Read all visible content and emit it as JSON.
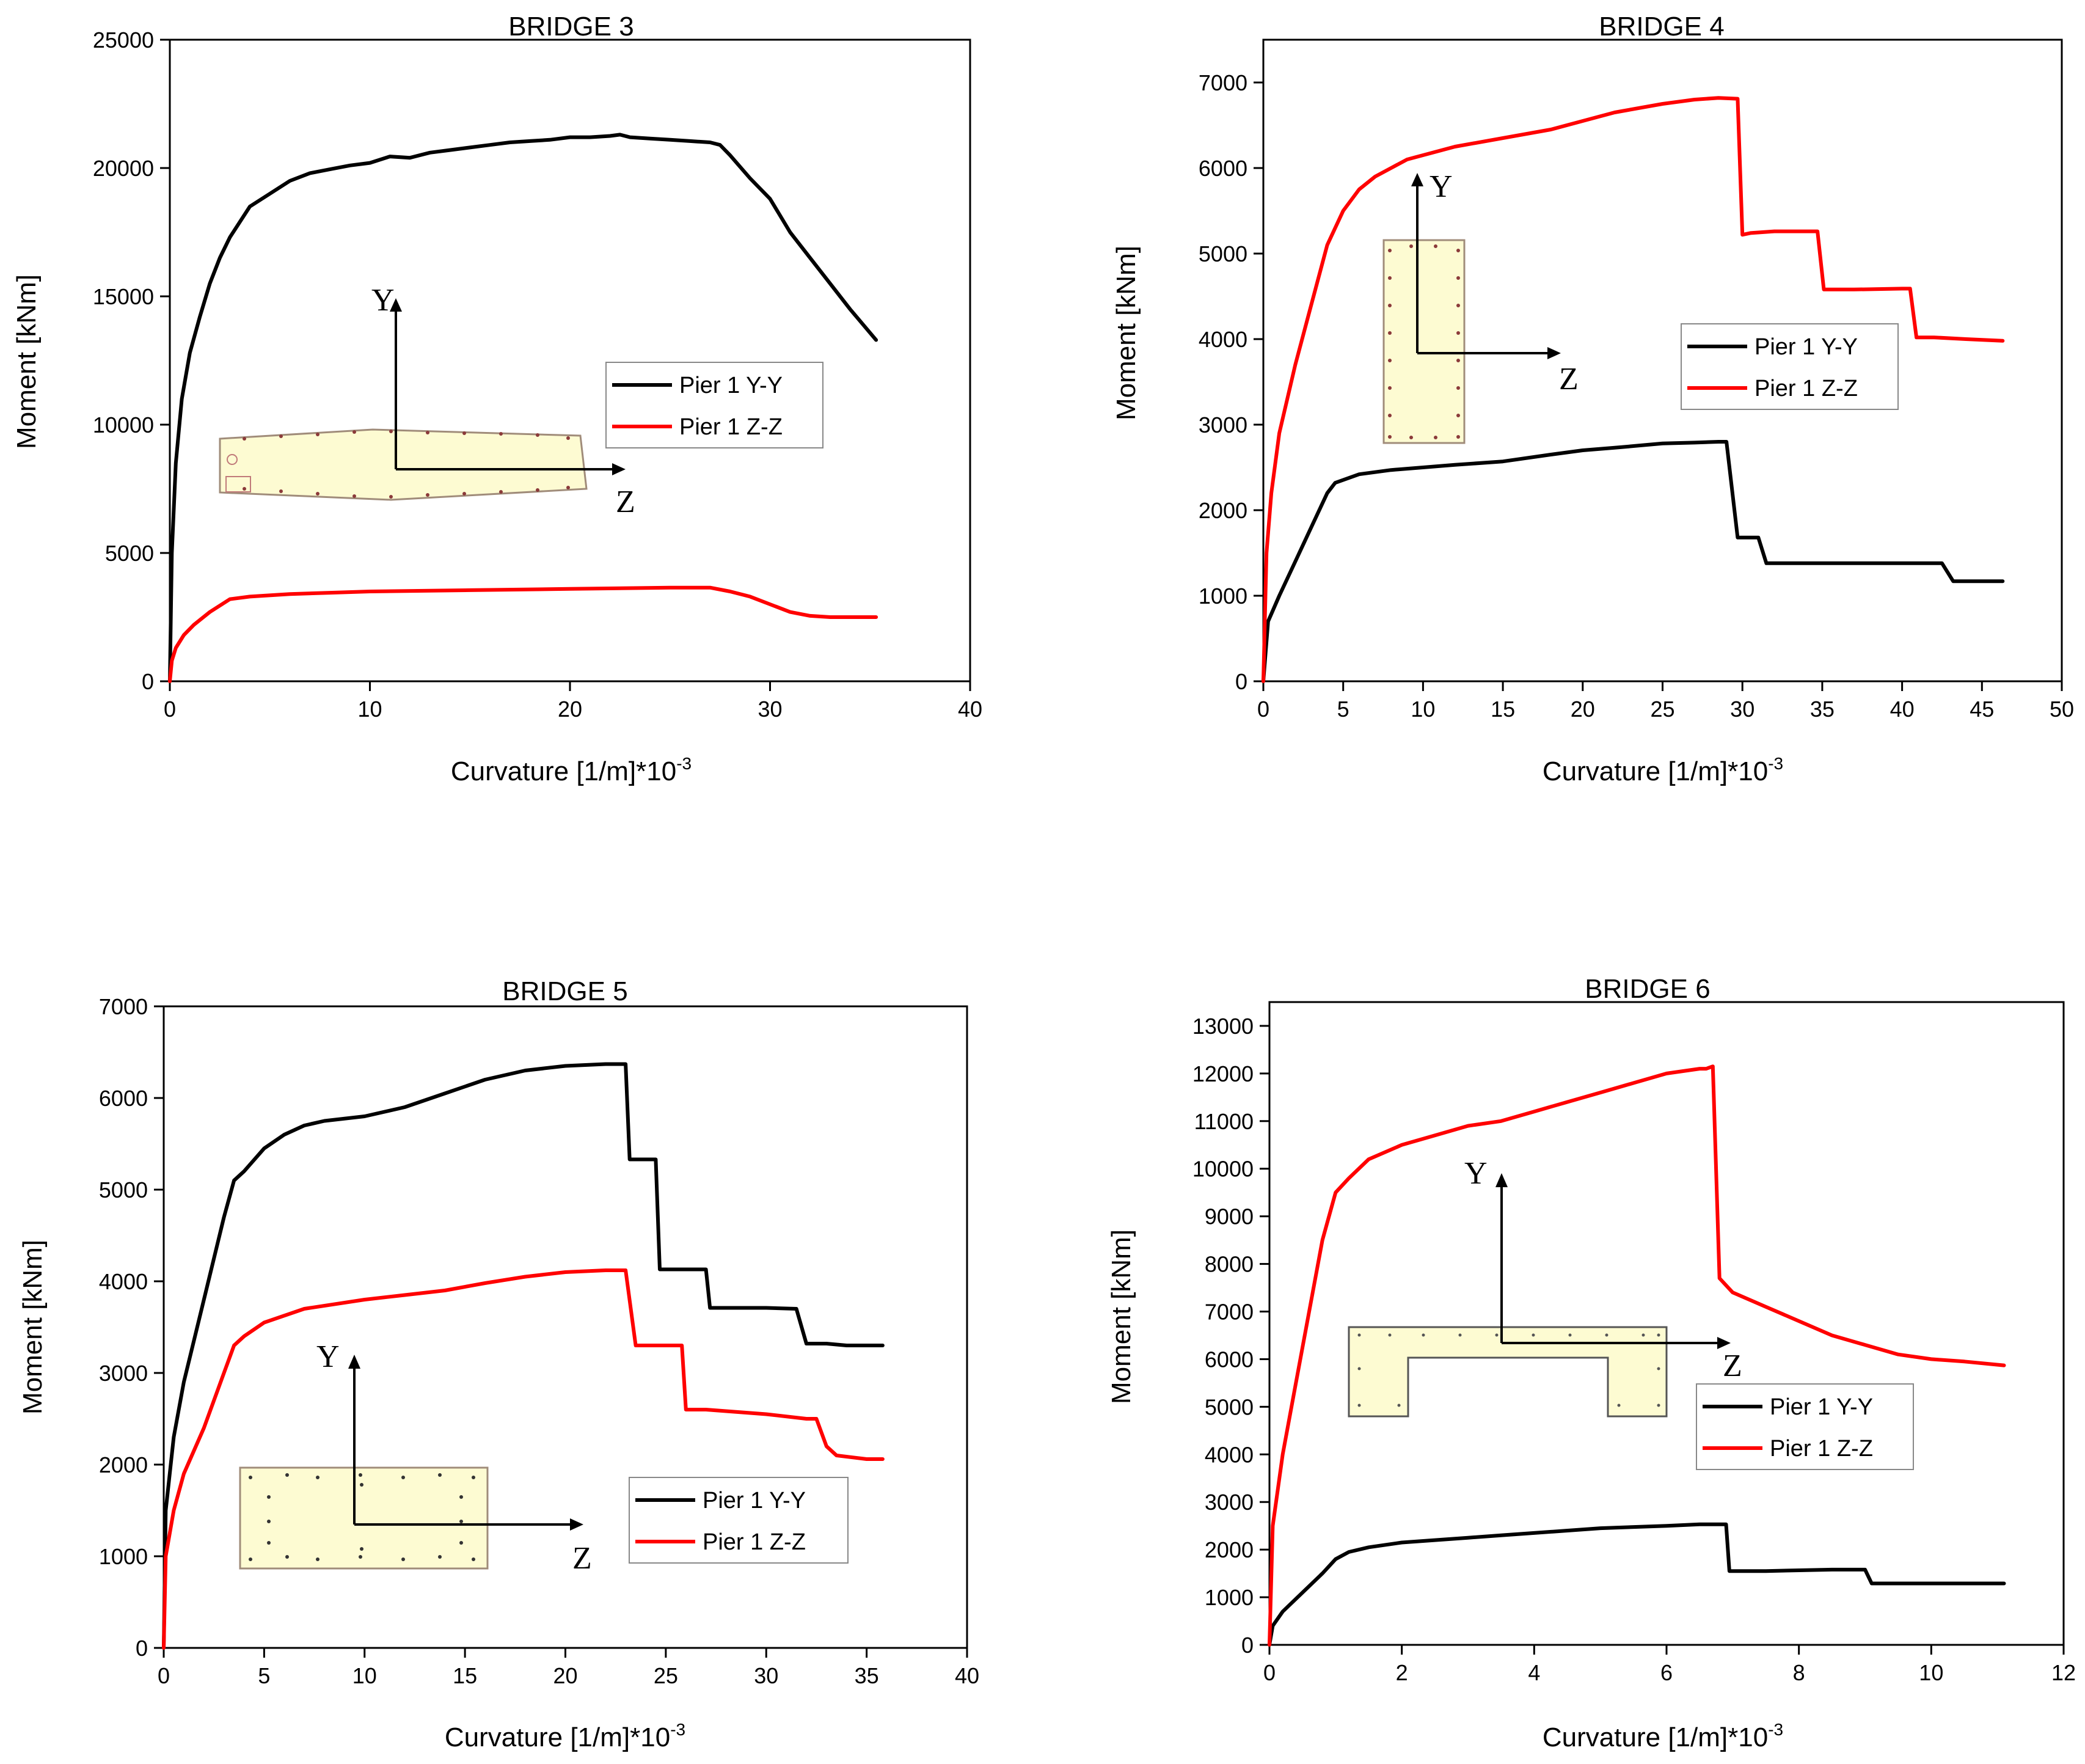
{
  "colors": {
    "axis": "#000000",
    "yy": "#000000",
    "zz": "#ff0000",
    "section_fill": "#fdfbd2",
    "section_stroke": "#a08c7a",
    "rebar": "#8b3a3a"
  },
  "legend_labels": {
    "yy": "Pier 1 Y-Y",
    "zz": "Pier 1 Z-Z"
  },
  "axis_labels": {
    "y": "Y",
    "z": "Z"
  },
  "chart_data": [
    {
      "id": "bridge3",
      "type": "line",
      "title": "BRIDGE 3",
      "xlabel": "Curvature [1/m]*10",
      "xlabel_sup": "-3",
      "ylabel": "Moment [kNm]",
      "xlim": [
        0,
        40
      ],
      "ylim": [
        0,
        25000
      ],
      "xticks": [
        0,
        10,
        20,
        30,
        40
      ],
      "yticks": [
        0,
        5000,
        10000,
        15000,
        20000,
        25000
      ],
      "legend": "right-middle",
      "series": [
        {
          "name": "Pier 1 Y-Y",
          "x": [
            0,
            0.1,
            0.3,
            0.6,
            1,
            1.5,
            2,
            2.5,
            3,
            4,
            5,
            6,
            7,
            8,
            9,
            10,
            11,
            12,
            13,
            14,
            15,
            16,
            17,
            18,
            19,
            20,
            21,
            22,
            22.5,
            23,
            24,
            25,
            26,
            27,
            27.5,
            28,
            29,
            30,
            31,
            32,
            33,
            34,
            35.3
          ],
          "y": [
            0,
            5000,
            8500,
            11000,
            12800,
            14200,
            15500,
            16500,
            17300,
            18500,
            19000,
            19500,
            19800,
            19950,
            20100,
            20200,
            20450,
            20400,
            20600,
            20700,
            20800,
            20900,
            21000,
            21050,
            21100,
            21200,
            21200,
            21250,
            21300,
            21200,
            21150,
            21100,
            21050,
            21000,
            20900,
            20500,
            19600,
            18800,
            17500,
            16500,
            15500,
            14500,
            13300
          ]
        },
        {
          "name": "Pier 1 Z-Z",
          "x": [
            0,
            0.1,
            0.3,
            0.7,
            1.2,
            2,
            3,
            4,
            6,
            8,
            10,
            15,
            20,
            25,
            27,
            28,
            29,
            30,
            31,
            32,
            33,
            35.3
          ],
          "y": [
            0,
            800,
            1300,
            1800,
            2200,
            2700,
            3200,
            3300,
            3400,
            3450,
            3500,
            3550,
            3600,
            3650,
            3650,
            3500,
            3300,
            3000,
            2700,
            2550,
            2500,
            2500
          ]
        }
      ]
    },
    {
      "id": "bridge4",
      "type": "line",
      "title": "BRIDGE 4",
      "xlabel": "Curvature [1/m]*10",
      "xlabel_sup": "-3",
      "ylabel": "Moment [kNm]",
      "xlim": [
        0,
        50
      ],
      "ylim": [
        0,
        7500
      ],
      "xticks": [
        0,
        5,
        10,
        15,
        20,
        25,
        30,
        35,
        40,
        45,
        50
      ],
      "yticks": [
        0,
        1000,
        2000,
        3000,
        4000,
        5000,
        6000,
        7000
      ],
      "legend": "right-middle",
      "series": [
        {
          "name": "Pier 1 Y-Y",
          "x": [
            0,
            0.3,
            1,
            2,
            3,
            4,
            4.5,
            6,
            8,
            10,
            12,
            15,
            18,
            20,
            22,
            25,
            27,
            28.5,
            29,
            29.7,
            30.5,
            31,
            31.5,
            35,
            40,
            42.5,
            43.2,
            44,
            46.3
          ],
          "y": [
            0,
            700,
            1000,
            1400,
            1800,
            2200,
            2320,
            2420,
            2470,
            2500,
            2530,
            2570,
            2650,
            2700,
            2730,
            2780,
            2790,
            2800,
            2800,
            1680,
            1680,
            1680,
            1380,
            1380,
            1380,
            1380,
            1170,
            1170,
            1170
          ]
        },
        {
          "name": "Pier 1 Z-Z",
          "x": [
            0,
            0.2,
            0.5,
            1,
            2,
            3,
            4,
            5,
            6,
            7,
            8,
            9,
            10,
            12,
            15,
            18,
            20,
            22,
            25,
            27,
            28.5,
            29.7,
            30,
            30.5,
            32,
            34,
            34.7,
            35.1,
            37,
            40,
            40.5,
            40.9,
            42,
            44,
            46.3
          ],
          "y": [
            0,
            1500,
            2200,
            2900,
            3700,
            4400,
            5100,
            5500,
            5750,
            5900,
            6000,
            6100,
            6150,
            6250,
            6350,
            6450,
            6550,
            6650,
            6750,
            6800,
            6820,
            6810,
            5220,
            5240,
            5260,
            5260,
            5260,
            4580,
            4580,
            4590,
            4590,
            4020,
            4020,
            4000,
            3980
          ]
        }
      ]
    },
    {
      "id": "bridge5",
      "type": "line",
      "title": "BRIDGE 5",
      "xlabel": "Curvature [1/m]*10",
      "xlabel_sup": "-3",
      "ylabel": "Moment [kNm]",
      "xlim": [
        0,
        40
      ],
      "ylim": [
        0,
        7000
      ],
      "xticks": [
        0,
        5,
        10,
        15,
        20,
        25,
        30,
        35,
        40
      ],
      "yticks": [
        0,
        1000,
        2000,
        3000,
        4000,
        5000,
        6000,
        7000
      ],
      "legend": "right-bottom",
      "series": [
        {
          "name": "Pier 1 Y-Y",
          "x": [
            0,
            0.1,
            0.5,
            1,
            2,
            3,
            3.5,
            4,
            5,
            6,
            7,
            8,
            10,
            12,
            14,
            16,
            18,
            20,
            22,
            23,
            23.2,
            24,
            24.5,
            24.7,
            25,
            26,
            27,
            27.2,
            28,
            30,
            31.5,
            32,
            33,
            34,
            35.8
          ],
          "y": [
            0,
            1500,
            2300,
            2900,
            3800,
            4700,
            5100,
            5200,
            5450,
            5600,
            5700,
            5750,
            5800,
            5900,
            6050,
            6200,
            6300,
            6350,
            6370,
            6370,
            5330,
            5330,
            5330,
            4130,
            4130,
            4130,
            4130,
            3710,
            3710,
            3710,
            3700,
            3320,
            3320,
            3300,
            3300
          ]
        },
        {
          "name": "Pier 1 Z-Z",
          "x": [
            0,
            0.1,
            0.5,
            1,
            2,
            3,
            3.5,
            4,
            5,
            7,
            10,
            12,
            14,
            16,
            18,
            20,
            22,
            23,
            23.5,
            24,
            25,
            25.8,
            26,
            27,
            30,
            32,
            32.5,
            33,
            33.5,
            35,
            35.8
          ],
          "y": [
            0,
            1000,
            1500,
            1900,
            2400,
            3000,
            3300,
            3400,
            3550,
            3700,
            3800,
            3850,
            3900,
            3980,
            4050,
            4100,
            4120,
            4120,
            3300,
            3300,
            3300,
            3300,
            2600,
            2600,
            2550,
            2500,
            2500,
            2200,
            2100,
            2060,
            2060
          ]
        }
      ]
    },
    {
      "id": "bridge6",
      "type": "line",
      "title": "BRIDGE 6",
      "xlabel": "Curvature [1/m]*10",
      "xlabel_sup": "-3",
      "ylabel": "Moment [kNm]",
      "xlim": [
        0,
        12
      ],
      "ylim": [
        0,
        13500
      ],
      "xticks": [
        0,
        2,
        4,
        6,
        8,
        10,
        12
      ],
      "yticks": [
        0,
        1000,
        2000,
        3000,
        4000,
        5000,
        6000,
        7000,
        8000,
        9000,
        10000,
        11000,
        12000,
        13000
      ],
      "legend": "right-bottom",
      "series": [
        {
          "name": "Pier 1 Y-Y",
          "x": [
            0,
            0.05,
            0.2,
            0.5,
            0.8,
            1,
            1.2,
            1.5,
            2,
            2.5,
            3,
            3.5,
            4,
            5,
            6,
            6.5,
            6.9,
            6.95,
            7.5,
            8.5,
            9,
            9.1,
            9.5,
            10,
            11.1
          ],
          "y": [
            0,
            400,
            700,
            1100,
            1500,
            1800,
            1950,
            2050,
            2150,
            2200,
            2250,
            2300,
            2350,
            2450,
            2500,
            2530,
            2530,
            1550,
            1550,
            1580,
            1580,
            1290,
            1290,
            1290,
            1290
          ]
        },
        {
          "name": "Pier 1 Z-Z",
          "x": [
            0,
            0.05,
            0.2,
            0.4,
            0.6,
            0.8,
            1,
            1.2,
            1.5,
            2,
            2.5,
            3,
            3.5,
            4,
            4.5,
            5,
            5.5,
            6,
            6.5,
            6.6,
            6.7,
            6.8,
            7,
            7.5,
            8,
            8.5,
            9,
            9.5,
            10,
            10.5,
            11.1
          ],
          "y": [
            0,
            2500,
            4000,
            5500,
            7000,
            8500,
            9500,
            9800,
            10200,
            10500,
            10700,
            10900,
            11000,
            11200,
            11400,
            11600,
            11800,
            12000,
            12100,
            12100,
            12150,
            7700,
            7400,
            7100,
            6800,
            6500,
            6300,
            6100,
            6000,
            5950,
            5870
          ]
        }
      ]
    }
  ]
}
